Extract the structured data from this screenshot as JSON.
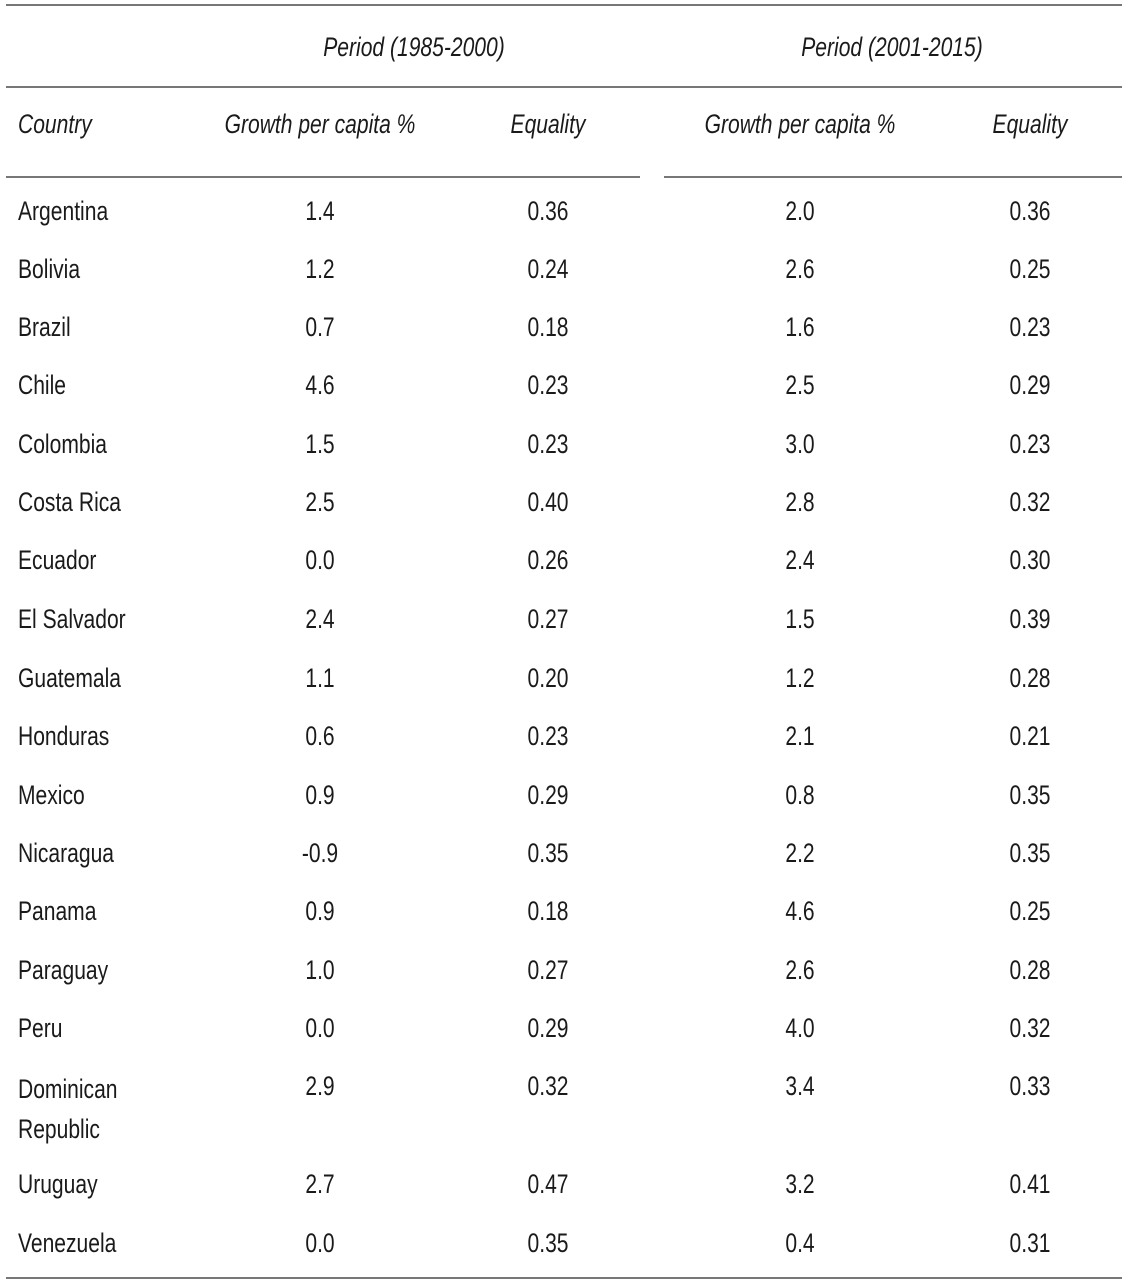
{
  "table": {
    "period_headers": [
      "Period  (1985-2000)",
      "Period  (2001-2015)"
    ],
    "column_headers": {
      "country": "Country",
      "growth_1": "Growth per capita %",
      "equality_1": "Equality",
      "growth_2": "Growth per capita %",
      "equality_2": "Equality"
    },
    "rows": [
      {
        "country": "Argentina",
        "g1": "1.4",
        "e1": "0.36",
        "g2": "2.0",
        "e2": "0.36"
      },
      {
        "country": "Bolivia",
        "g1": "1.2",
        "e1": "0.24",
        "g2": "2.6",
        "e2": "0.25"
      },
      {
        "country": "Brazil",
        "g1": "0.7",
        "e1": "0.18",
        "g2": "1.6",
        "e2": "0.23"
      },
      {
        "country": "Chile",
        "g1": "4.6",
        "e1": "0.23",
        "g2": "2.5",
        "e2": "0.29"
      },
      {
        "country": "Colombia",
        "g1": "1.5",
        "e1": "0.23",
        "g2": "3.0",
        "e2": "0.23"
      },
      {
        "country": "Costa Rica",
        "g1": "2.5",
        "e1": "0.40",
        "g2": "2.8",
        "e2": "0.32"
      },
      {
        "country": "Ecuador",
        "g1": "0.0",
        "e1": "0.26",
        "g2": "2.4",
        "e2": "0.30"
      },
      {
        "country": "El Salvador",
        "g1": "2.4",
        "e1": "0.27",
        "g2": "1.5",
        "e2": "0.39"
      },
      {
        "country": "Guatemala",
        "g1": "1.1",
        "e1": "0.20",
        "g2": "1.2",
        "e2": "0.28"
      },
      {
        "country": "Honduras",
        "g1": "0.6",
        "e1": "0.23",
        "g2": "2.1",
        "e2": "0.21"
      },
      {
        "country": "Mexico",
        "g1": "0.9",
        "e1": "0.29",
        "g2": "0.8",
        "e2": "0.35"
      },
      {
        "country": "Nicaragua",
        "g1": "-0.9",
        "e1": "0.35",
        "g2": "2.2",
        "e2": "0.35"
      },
      {
        "country": "Panama",
        "g1": "0.9",
        "e1": "0.18",
        "g2": "4.6",
        "e2": "0.25"
      },
      {
        "country": "Paraguay",
        "g1": "1.0",
        "e1": "0.27",
        "g2": "2.6",
        "e2": "0.28"
      },
      {
        "country": "Peru",
        "g1": "0.0",
        "e1": "0.29",
        "g2": "4.0",
        "e2": "0.32"
      },
      {
        "country": "Dominican Republic",
        "g1": "2.9",
        "e1": "0.32",
        "g2": "3.4",
        "e2": "0.33"
      },
      {
        "country": "Uruguay",
        "g1": "2.7",
        "e1": "0.47",
        "g2": "3.2",
        "e2": "0.41"
      },
      {
        "country": "Venezuela",
        "g1": "0.0",
        "e1": "0.35",
        "g2": "0.4",
        "e2": "0.31"
      }
    ]
  }
}
